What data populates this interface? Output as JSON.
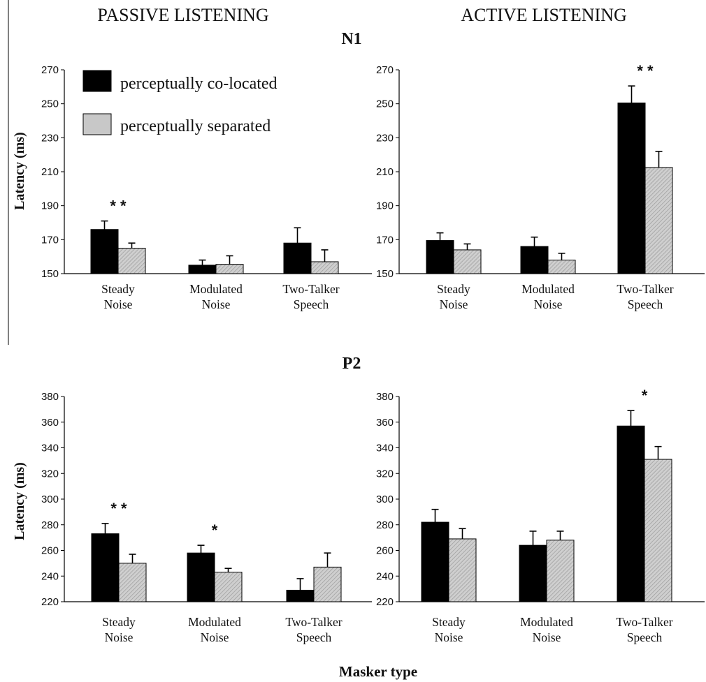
{
  "headings": {
    "passive": "PASSIVE LISTENING",
    "active": "ACTIVE LISTENING",
    "n1": "N1",
    "p2": "P2"
  },
  "axis_labels": {
    "ylabel_top": "Latency (ms)",
    "ylabel_bottom": "Latency (ms)",
    "xlabel": "Masker type"
  },
  "legend": {
    "colocated": "perceptually co-located",
    "separated": "perceptually separated"
  },
  "colors": {
    "colocated": "#000000",
    "separated": "#c8c8c8",
    "separated_hatch": "#9a9a9a",
    "axis": "#000000"
  },
  "chart_data": [
    {
      "type": "bar",
      "panel": "N1 passive",
      "categories": [
        [
          "Steady",
          "Noise"
        ],
        [
          "Modulated",
          "Noise"
        ],
        [
          "Two-Talker",
          "Speech"
        ]
      ],
      "ylim": [
        150,
        270
      ],
      "yticks": [
        150,
        170,
        190,
        210,
        230,
        250,
        270
      ],
      "series": [
        {
          "name": "perceptually co-located",
          "values": [
            176,
            155,
            168
          ],
          "errors": [
            5,
            3,
            9
          ]
        },
        {
          "name": "perceptually separated",
          "values": [
            165,
            155.5,
            157
          ],
          "errors": [
            3,
            5,
            7
          ]
        }
      ],
      "significance": [
        "* *",
        "",
        ""
      ],
      "legend": "top-left"
    },
    {
      "type": "bar",
      "panel": "N1 active",
      "categories": [
        [
          "Steady",
          "Noise"
        ],
        [
          "Modulated",
          "Noise"
        ],
        [
          "Two-Talker",
          "Speech"
        ]
      ],
      "ylim": [
        150,
        270
      ],
      "yticks": [
        150,
        170,
        190,
        210,
        230,
        250,
        270
      ],
      "series": [
        {
          "name": "perceptually co-located",
          "values": [
            169.5,
            166,
            250.5
          ],
          "errors": [
            4.5,
            5.5,
            10
          ]
        },
        {
          "name": "perceptually separated",
          "values": [
            164,
            158,
            212.5
          ],
          "errors": [
            3.5,
            4,
            9.5
          ]
        }
      ],
      "significance": [
        "",
        "",
        "* *"
      ]
    },
    {
      "type": "bar",
      "panel": "P2 passive",
      "categories": [
        [
          "Steady",
          "Noise"
        ],
        [
          "Modulated",
          "Noise"
        ],
        [
          "Two-Talker",
          "Speech"
        ]
      ],
      "ylim": [
        220,
        380
      ],
      "yticks": [
        220,
        240,
        260,
        280,
        300,
        320,
        340,
        360,
        380
      ],
      "series": [
        {
          "name": "perceptually co-located",
          "values": [
            273,
            258,
            229
          ],
          "errors": [
            8,
            6,
            9
          ]
        },
        {
          "name": "perceptually separated",
          "values": [
            250,
            243,
            247
          ],
          "errors": [
            7,
            3,
            11
          ]
        }
      ],
      "significance": [
        "* *",
        "*",
        ""
      ]
    },
    {
      "type": "bar",
      "panel": "P2 active",
      "categories": [
        [
          "Steady",
          "Noise"
        ],
        [
          "Modulated",
          "Noise"
        ],
        [
          "Two-Talker",
          "Speech"
        ]
      ],
      "ylim": [
        220,
        380
      ],
      "yticks": [
        220,
        240,
        260,
        280,
        300,
        320,
        340,
        360,
        380
      ],
      "series": [
        {
          "name": "perceptually co-located",
          "values": [
            282,
            264,
            357
          ],
          "errors": [
            10,
            11,
            12
          ]
        },
        {
          "name": "perceptually separated",
          "values": [
            269,
            268,
            331
          ],
          "errors": [
            8,
            7,
            10
          ]
        }
      ],
      "significance": [
        "",
        "",
        "*"
      ]
    }
  ]
}
